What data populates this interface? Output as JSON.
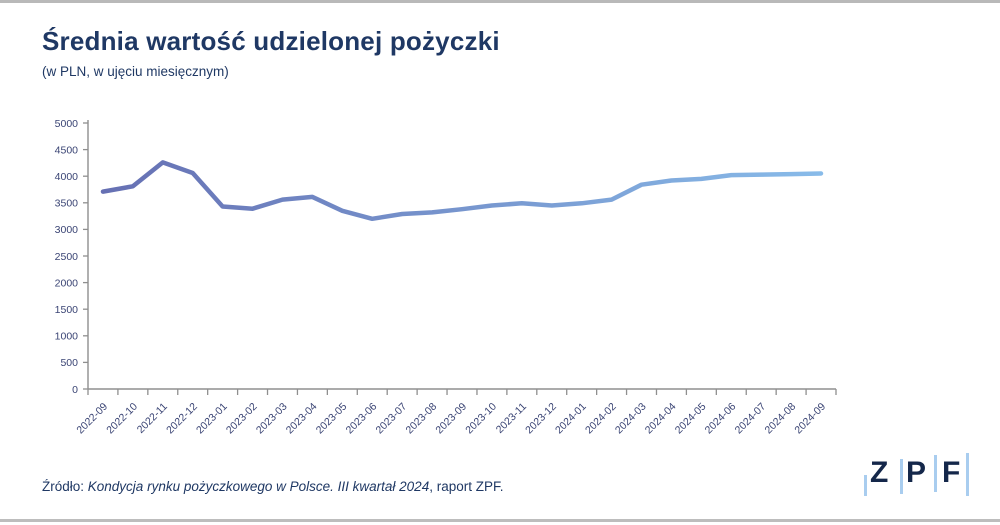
{
  "page": {
    "title": "Średnia wartość udzielonej pożyczki",
    "subtitle": "(w PLN, w ujęciu miesięcznym)",
    "source": {
      "prefix": "Źródło: ",
      "italic": "Kondycja rynku pożyczkowego w Polsce. III kwartał 2024",
      "suffix": ", raport ZPF."
    },
    "logo": {
      "letters": [
        "Z",
        "P",
        "F"
      ],
      "bar_color": "#a9cdef",
      "letter_color": "#14274a"
    }
  },
  "colors": {
    "title_navy": "#1f3864",
    "axis_gray": "#8f8f8f",
    "tick_label": "#3a4474",
    "line_start": "#6670b3",
    "line_end": "#88bbe9",
    "border_gray": "#bdbdbd"
  },
  "chart_data": {
    "type": "line",
    "title": "Średnia wartość udzielonej pożyczki",
    "subtitle": "(w PLN, w ujęciu miesięcznym)",
    "xlabel": "",
    "ylabel": "",
    "ylim": [
      0,
      5000
    ],
    "ytick_step": 500,
    "grid": false,
    "legend": "none",
    "line_gradient": [
      "#6670b3",
      "#88bbe9"
    ],
    "categories": [
      "2022-09",
      "2022-10",
      "2022-11",
      "2022-12",
      "2023-01",
      "2023-02",
      "2023-03",
      "2023-04",
      "2023-05",
      "2023-06",
      "2023-07",
      "2023-08",
      "2023-09",
      "2023-10",
      "2023-11",
      "2023-12",
      "2024-01",
      "2024-02",
      "2024-03",
      "2024-04",
      "2024-05",
      "2024-06",
      "2024-07",
      "2024-08",
      "2024-09"
    ],
    "values": [
      3710,
      3810,
      4260,
      4060,
      3430,
      3390,
      3560,
      3610,
      3350,
      3200,
      3290,
      3320,
      3380,
      3450,
      3490,
      3450,
      3490,
      3560,
      3840,
      3920,
      3950,
      4020,
      4030,
      4040,
      4050
    ]
  }
}
